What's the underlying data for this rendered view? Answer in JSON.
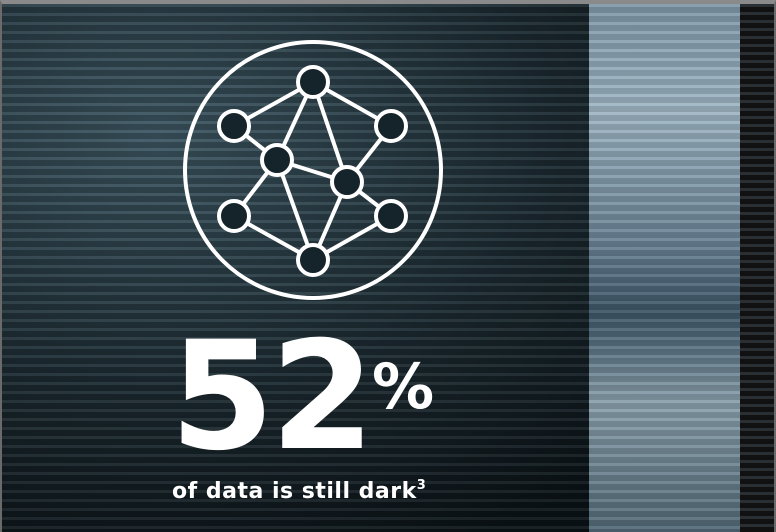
{
  "stat": {
    "value": "52",
    "unit": "%",
    "caption": "of data is still dark",
    "footnote": "3"
  }
}
